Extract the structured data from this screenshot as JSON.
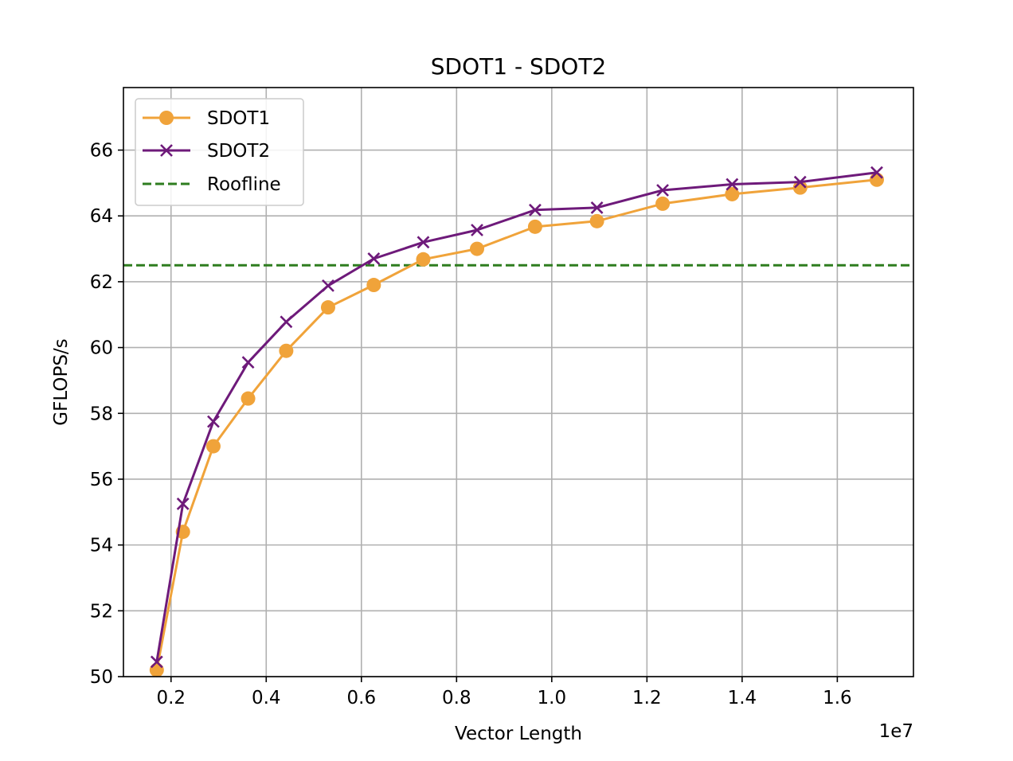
{
  "chart_data": {
    "type": "line",
    "title": "SDOT1 - SDOT2",
    "xlabel": "Vector Length",
    "ylabel": "GFLOPS/s",
    "x_offset_label": "1e7",
    "xlim": [
      1000000,
      17600000
    ],
    "ylim": [
      50,
      67.9
    ],
    "xticks": [
      2000000,
      4000000,
      6000000,
      8000000,
      10000000,
      12000000,
      14000000,
      16000000
    ],
    "xtick_labels": [
      "0.2",
      "0.4",
      "0.6",
      "0.8",
      "1.0",
      "1.2",
      "1.4",
      "1.6"
    ],
    "yticks": [
      50,
      52,
      54,
      56,
      58,
      60,
      62,
      64,
      66
    ],
    "ytick_labels": [
      "50",
      "52",
      "54",
      "56",
      "58",
      "60",
      "62",
      "64",
      "66"
    ],
    "grid": true,
    "legend_position": "top-left",
    "x": [
      1700000,
      2250000,
      2890000,
      3620000,
      4420000,
      5300000,
      6260000,
      7300000,
      8430000,
      9650000,
      10950000,
      12330000,
      13790000,
      15220000,
      16830000
    ],
    "series": [
      {
        "name": "SDOT1",
        "color": "#f0a33a",
        "marker": "circle",
        "values": [
          50.2,
          54.4,
          57.0,
          58.45,
          59.9,
          61.22,
          61.9,
          62.68,
          63.0,
          63.67,
          63.84,
          64.37,
          64.66,
          64.86,
          65.1
        ]
      },
      {
        "name": "SDOT2",
        "color": "#6e1a7a",
        "marker": "x",
        "values": [
          50.45,
          55.25,
          57.75,
          59.55,
          60.78,
          61.88,
          62.7,
          63.2,
          63.57,
          64.18,
          64.25,
          64.78,
          64.96,
          65.03,
          65.32
        ]
      }
    ],
    "reference_lines": [
      {
        "name": "Roofline",
        "y": 62.5,
        "color": "#2e7d1f",
        "style": "dashed"
      }
    ]
  }
}
